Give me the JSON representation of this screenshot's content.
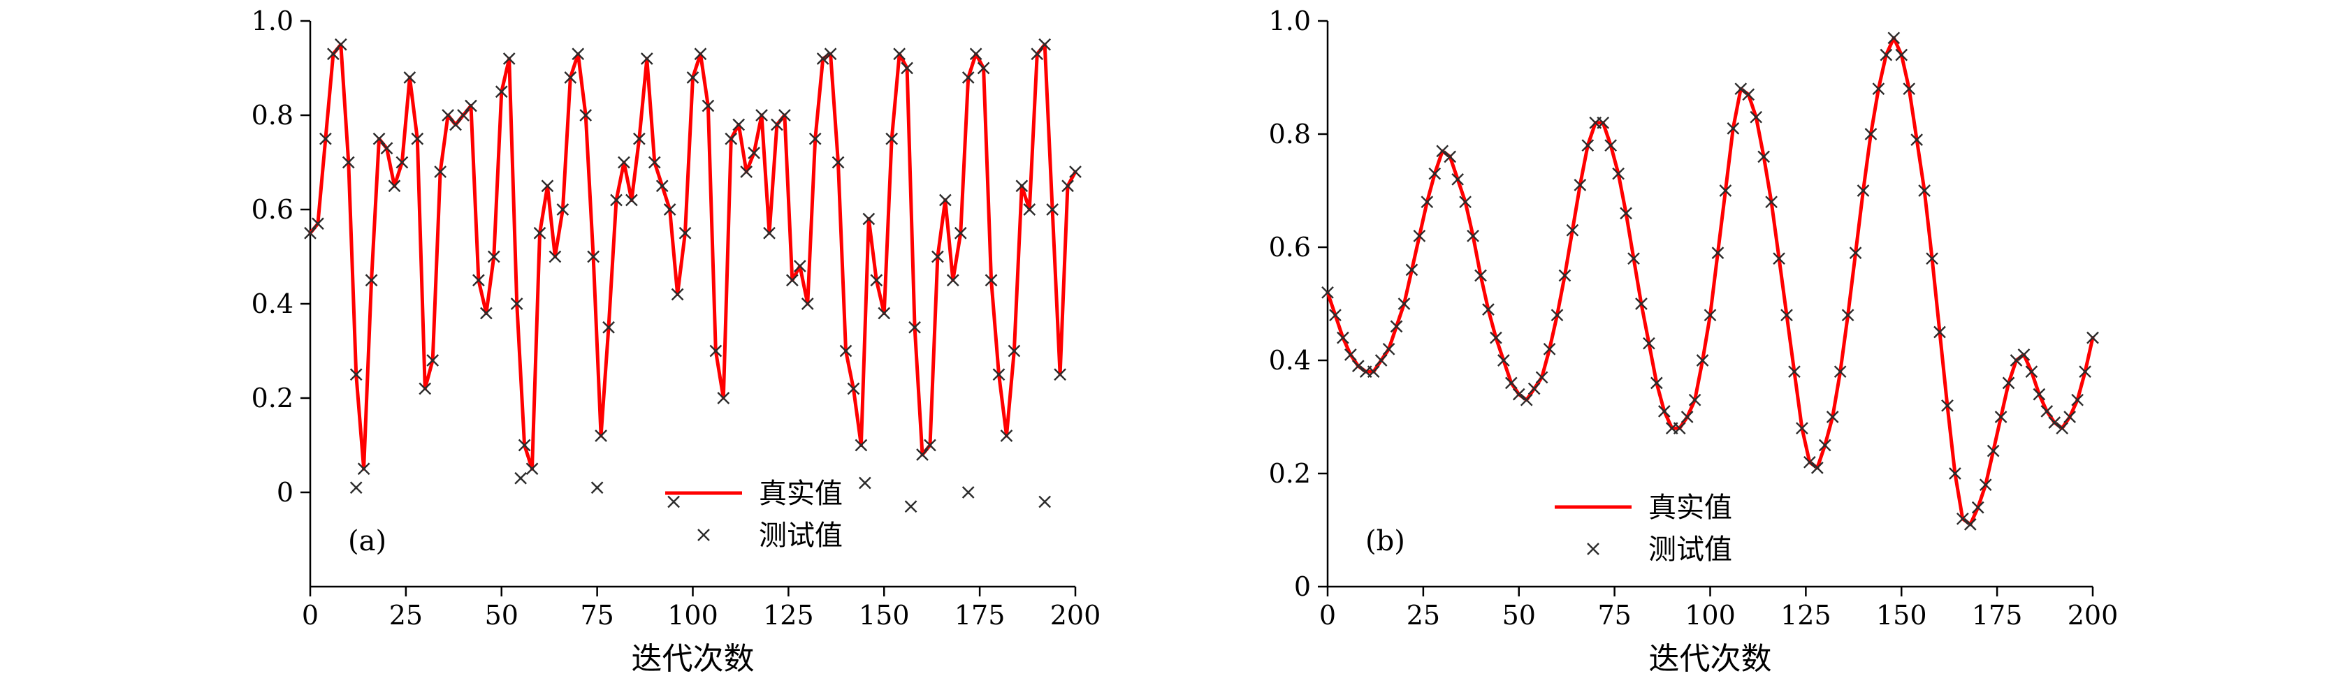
{
  "figure": {
    "background": "#ffffff",
    "line_color": "#ff0000",
    "marker_color": "#2b2b2b",
    "axis_color": "#000000"
  },
  "chart_data": [
    {
      "id": "a",
      "type": "line",
      "panel_label": "(a)",
      "title": "",
      "xlabel": "迭代次数",
      "ylabel": "",
      "xlim": [
        0,
        200
      ],
      "ylim": [
        -0.2,
        1.0
      ],
      "xticks": [
        0,
        25,
        50,
        75,
        100,
        125,
        150,
        175,
        200
      ],
      "xtick_labels": [
        "0",
        "25",
        "50",
        "75",
        "100",
        "125",
        "150",
        "175",
        "200"
      ],
      "yticks": [
        0,
        0.2,
        0.4,
        0.6,
        0.8,
        1.0
      ],
      "ytick_labels": [
        "0",
        "0.2",
        "0.4",
        "0.6",
        "0.8",
        "1.0"
      ],
      "grid": false,
      "legend_position": "lower center inside",
      "x_start": 0,
      "x_step": 2,
      "series": [
        {
          "name": "真实值",
          "style": "line",
          "color": "#ff0000",
          "values": [
            0.55,
            0.57,
            0.75,
            0.93,
            0.95,
            0.7,
            0.25,
            0.05,
            0.45,
            0.75,
            0.73,
            0.65,
            0.7,
            0.88,
            0.75,
            0.22,
            0.28,
            0.68,
            0.8,
            0.78,
            0.8,
            0.82,
            0.45,
            0.38,
            0.5,
            0.85,
            0.92,
            0.4,
            0.1,
            0.05,
            0.55,
            0.65,
            0.5,
            0.6,
            0.88,
            0.93,
            0.8,
            0.5,
            0.12,
            0.35,
            0.62,
            0.7,
            0.62,
            0.75,
            0.92,
            0.7,
            0.65,
            0.6,
            0.42,
            0.55,
            0.88,
            0.93,
            0.82,
            0.3,
            0.2,
            0.75,
            0.78,
            0.68,
            0.72,
            0.8,
            0.55,
            0.78,
            0.8,
            0.45,
            0.48,
            0.4,
            0.75,
            0.92,
            0.93,
            0.7,
            0.3,
            0.22,
            0.1,
            0.58,
            0.45,
            0.38,
            0.75,
            0.93,
            0.9,
            0.35,
            0.08,
            0.1,
            0.5,
            0.62,
            0.45,
            0.55,
            0.88,
            0.93,
            0.9,
            0.45,
            0.25,
            0.12,
            0.3,
            0.65,
            0.6,
            0.93,
            0.95,
            0.6,
            0.25,
            0.65,
            0.68
          ]
        },
        {
          "name": "测试值",
          "style": "marker-x",
          "color": "#2b2b2b",
          "follows": "真实值",
          "outliers": [
            {
              "x": 12,
              "y": 0.01
            },
            {
              "x": 55,
              "y": 0.03
            },
            {
              "x": 75,
              "y": 0.01
            },
            {
              "x": 95,
              "y": -0.02
            },
            {
              "x": 145,
              "y": 0.02
            },
            {
              "x": 157,
              "y": -0.03
            },
            {
              "x": 172,
              "y": 0.0
            },
            {
              "x": 192,
              "y": -0.02
            }
          ]
        }
      ],
      "legend": [
        {
          "label": "真实值",
          "sample": "line",
          "color": "#ff0000"
        },
        {
          "label": "测试值",
          "sample": "marker-x",
          "color": "#2b2b2b"
        }
      ]
    },
    {
      "id": "b",
      "type": "line",
      "panel_label": "(b)",
      "title": "",
      "xlabel": "迭代次数",
      "ylabel": "",
      "xlim": [
        0,
        200
      ],
      "ylim": [
        0,
        1.0
      ],
      "xticks": [
        0,
        25,
        50,
        75,
        100,
        125,
        150,
        175,
        200
      ],
      "xtick_labels": [
        "0",
        "25",
        "50",
        "75",
        "100",
        "125",
        "150",
        "175",
        "200"
      ],
      "yticks": [
        0,
        0.2,
        0.4,
        0.6,
        0.8,
        1.0
      ],
      "ytick_labels": [
        "0",
        "0.2",
        "0.4",
        "0.6",
        "0.8",
        "1.0"
      ],
      "grid": false,
      "legend_position": "lower center inside",
      "x_start": 0,
      "x_step": 2,
      "series": [
        {
          "name": "真实值",
          "style": "line",
          "color": "#ff0000",
          "values": [
            0.52,
            0.48,
            0.44,
            0.41,
            0.39,
            0.38,
            0.38,
            0.4,
            0.42,
            0.46,
            0.5,
            0.56,
            0.62,
            0.68,
            0.73,
            0.77,
            0.76,
            0.72,
            0.68,
            0.62,
            0.55,
            0.49,
            0.44,
            0.4,
            0.36,
            0.34,
            0.33,
            0.35,
            0.37,
            0.42,
            0.48,
            0.55,
            0.63,
            0.71,
            0.78,
            0.82,
            0.82,
            0.78,
            0.73,
            0.66,
            0.58,
            0.5,
            0.43,
            0.36,
            0.31,
            0.28,
            0.28,
            0.3,
            0.33,
            0.4,
            0.48,
            0.59,
            0.7,
            0.81,
            0.88,
            0.87,
            0.83,
            0.76,
            0.68,
            0.58,
            0.48,
            0.38,
            0.28,
            0.22,
            0.21,
            0.25,
            0.3,
            0.38,
            0.48,
            0.59,
            0.7,
            0.8,
            0.88,
            0.94,
            0.97,
            0.94,
            0.88,
            0.79,
            0.7,
            0.58,
            0.45,
            0.32,
            0.2,
            0.12,
            0.11,
            0.14,
            0.18,
            0.24,
            0.3,
            0.36,
            0.4,
            0.41,
            0.38,
            0.34,
            0.31,
            0.29,
            0.28,
            0.3,
            0.33,
            0.38,
            0.44
          ]
        },
        {
          "name": "测试值",
          "style": "marker-x",
          "color": "#2b2b2b",
          "follows": "真实值",
          "outliers": []
        }
      ],
      "legend": [
        {
          "label": "真实值",
          "sample": "line",
          "color": "#ff0000"
        },
        {
          "label": "测试值",
          "sample": "marker-x",
          "color": "#2b2b2b"
        }
      ]
    }
  ]
}
